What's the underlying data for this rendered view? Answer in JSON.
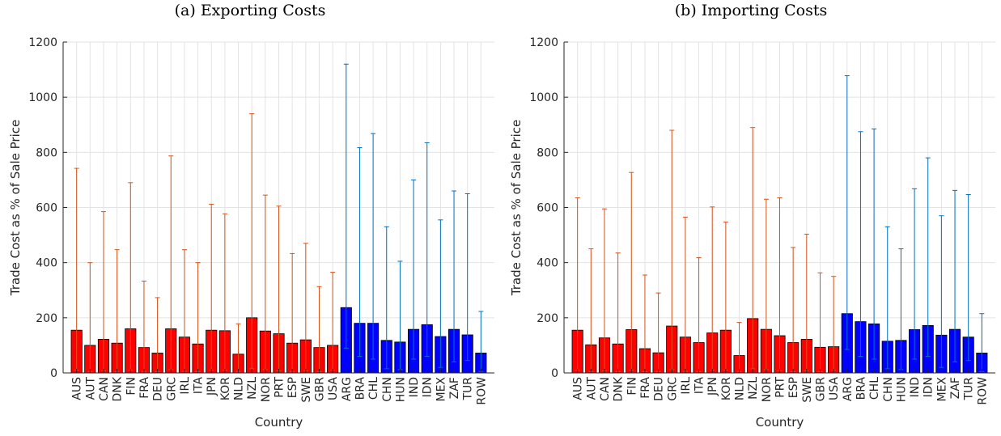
{
  "chart_data": [
    {
      "type": "bar",
      "title": "(a) Exporting Costs",
      "xlabel": "Country",
      "ylabel": "Trade Cost as % of Sale Price",
      "ylim": [
        0,
        1200
      ],
      "yticks": [
        0,
        200,
        400,
        600,
        800,
        1000,
        1200
      ],
      "grid": true,
      "categories": [
        "AUS",
        "AUT",
        "CAN",
        "DNK",
        "FIN",
        "FRA",
        "DEU",
        "GRC",
        "IRL",
        "ITA",
        "JPN",
        "KOR",
        "NLD",
        "NZL",
        "NOR",
        "PRT",
        "ESP",
        "SWE",
        "GBR",
        "USA",
        "ARG",
        "BRA",
        "CHL",
        "CHN",
        "HUN",
        "IND",
        "IDN",
        "MEX",
        "ZAF",
        "TUR",
        "ROW"
      ],
      "values": [
        155,
        100,
        122,
        108,
        160,
        92,
        72,
        160,
        130,
        105,
        155,
        153,
        68,
        200,
        152,
        142,
        108,
        120,
        92,
        100,
        237,
        180,
        180,
        118,
        112,
        158,
        175,
        132,
        158,
        138,
        72
      ],
      "error_upper": [
        742,
        400,
        585,
        447,
        690,
        333,
        273,
        787,
        447,
        400,
        612,
        577,
        178,
        940,
        645,
        605,
        433,
        470,
        313,
        365,
        1120,
        817,
        868,
        530,
        405,
        700,
        835,
        555,
        660,
        650,
        223
      ],
      "error_lower": [
        10,
        5,
        8,
        5,
        10,
        5,
        5,
        12,
        6,
        5,
        10,
        10,
        5,
        15,
        12,
        8,
        5,
        8,
        5,
        10,
        90,
        60,
        50,
        15,
        12,
        50,
        60,
        20,
        40,
        45,
        5
      ],
      "bar_colors": {
        "developed": "#ff0000",
        "developing": "#0000ff"
      },
      "error_colors": {
        "developed": "#d95319",
        "developing": "#0072bd"
      },
      "developed_count": 20
    },
    {
      "type": "bar",
      "title": "(b) Importing Costs",
      "xlabel": "Country",
      "ylabel": "Trade Cost as % of Sale Price",
      "ylim": [
        0,
        1200
      ],
      "yticks": [
        0,
        200,
        400,
        600,
        800,
        1000,
        1200
      ],
      "grid": true,
      "categories": [
        "AUS",
        "AUT",
        "CAN",
        "DNK",
        "FIN",
        "FRA",
        "DEU",
        "GRC",
        "IRL",
        "ITA",
        "JPN",
        "KOR",
        "NLD",
        "NZL",
        "NOR",
        "PRT",
        "ESP",
        "SWE",
        "GBR",
        "USA",
        "ARG",
        "BRA",
        "CHL",
        "CHN",
        "HUN",
        "IND",
        "IDN",
        "MEX",
        "ZAF",
        "TUR",
        "ROW"
      ],
      "values": [
        155,
        102,
        127,
        105,
        157,
        88,
        73,
        170,
        130,
        110,
        145,
        155,
        63,
        197,
        158,
        135,
        110,
        122,
        93,
        95,
        215,
        186,
        178,
        115,
        118,
        157,
        172,
        137,
        158,
        130,
        72
      ],
      "error_upper": [
        635,
        450,
        595,
        435,
        727,
        355,
        290,
        880,
        565,
        418,
        602,
        547,
        183,
        890,
        630,
        635,
        455,
        503,
        363,
        350,
        1078,
        875,
        885,
        530,
        450,
        668,
        780,
        570,
        662,
        647,
        215
      ],
      "error_lower": [
        10,
        5,
        8,
        5,
        10,
        5,
        5,
        12,
        6,
        5,
        10,
        10,
        5,
        15,
        12,
        8,
        5,
        8,
        5,
        10,
        85,
        60,
        50,
        15,
        12,
        50,
        60,
        20,
        40,
        45,
        5
      ],
      "bar_colors": {
        "developed": "#ff0000",
        "developing": "#0000ff"
      },
      "error_colors": {
        "developed": "#d95319",
        "developing": "#0072bd"
      },
      "developed_count": 20
    }
  ]
}
